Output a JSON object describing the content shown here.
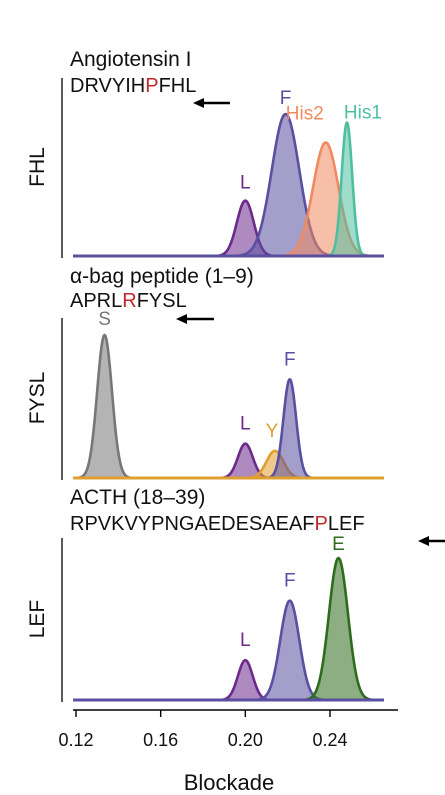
{
  "chart_data": {
    "type": "area",
    "xlabel": "Blockade",
    "xlim": [
      0.1,
      0.28
    ],
    "xticks": [
      0.12,
      0.16,
      0.2,
      0.24
    ],
    "xtick_labels": [
      "0.12",
      "0.16",
      "0.20",
      "0.24"
    ],
    "colors": {
      "L": "#6b2a8c",
      "F": "#5a4fa0",
      "His2": "#f08a60",
      "His1": "#4fbfa0",
      "S": "#777777",
      "Y": "#e0a030",
      "E": "#2f6b1c",
      "highlight": "#c0282a"
    },
    "panels": [
      {
        "ylabel": "FHL",
        "title": "Angiotensin I",
        "sequence_before": "DRVYIH",
        "sequence_highlight": "P",
        "sequence_after": "FHL",
        "arrow": "left",
        "baseline_color": "#5a4fa0",
        "peaks": [
          {
            "label": "L",
            "color": "#6b2a8c",
            "center": 0.2,
            "sigma": 0.004,
            "height": 0.39
          },
          {
            "label": "F",
            "color": "#5a4fa0",
            "center": 0.219,
            "sigma": 0.0065,
            "height": 1.0
          },
          {
            "label": "His2",
            "color": "#f08a60",
            "center": 0.238,
            "sigma": 0.006,
            "height": 0.8
          },
          {
            "label": "His1",
            "color": "#4fbfa0",
            "center": 0.248,
            "sigma": 0.0025,
            "height": 0.94
          }
        ]
      },
      {
        "ylabel": "FYSL",
        "title": "α-bag peptide (1–9)",
        "sequence_before": "APRL",
        "sequence_highlight": "R",
        "sequence_after": "FYSL",
        "arrow": "left",
        "baseline_color": "#e0a030",
        "peaks": [
          {
            "label": "S",
            "color": "#777777",
            "center": 0.1335,
            "sigma": 0.0035,
            "height": 1.0
          },
          {
            "label": "L",
            "color": "#6b2a8c",
            "center": 0.2,
            "sigma": 0.0035,
            "height": 0.24
          },
          {
            "label": "Y",
            "color": "#e0a030",
            "center": 0.214,
            "sigma": 0.004,
            "height": 0.19
          },
          {
            "label": "F",
            "color": "#5a4fa0",
            "center": 0.221,
            "sigma": 0.003,
            "height": 0.69
          }
        ]
      },
      {
        "ylabel": "LEF",
        "title": "ACTH (18–39)",
        "sequence_before": "RPVKVYPNGAEDESAEAF",
        "sequence_highlight": "P",
        "sequence_after": "LEF",
        "arrow": "left",
        "baseline_color": "#5a4fa0",
        "peaks": [
          {
            "label": "L",
            "color": "#6b2a8c",
            "center": 0.2,
            "sigma": 0.0035,
            "height": 0.28
          },
          {
            "label": "F",
            "color": "#5a4fa0",
            "center": 0.221,
            "sigma": 0.0045,
            "height": 0.7
          },
          {
            "label": "E",
            "color": "#2f6b1c",
            "center": 0.244,
            "sigma": 0.0045,
            "height": 1.0
          }
        ]
      }
    ]
  }
}
